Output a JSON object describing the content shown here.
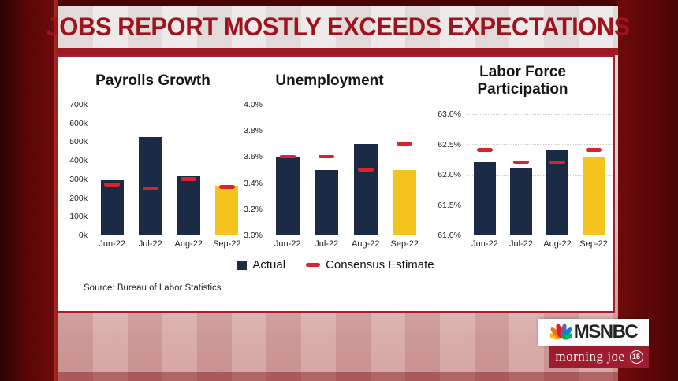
{
  "banner": {
    "title": "JOBS REPORT MOSTLY EXCEEDS EXPECTATIONS"
  },
  "colors": {
    "actual": "#1b2a45",
    "highlight": "#f5c31d",
    "consensus": "#d6252c",
    "banner_text": "#9e141e",
    "frame": "#6b0a0a"
  },
  "chart_data": [
    {
      "id": "payrolls",
      "type": "bar",
      "title": "Payrolls Growth",
      "categories": [
        "Jun-22",
        "Jul-22",
        "Aug-22",
        "Sep-22"
      ],
      "series": [
        {
          "name": "Actual",
          "values": [
            293,
            528,
            315,
            263
          ]
        },
        {
          "name": "Consensus Estimate",
          "values": [
            268,
            250,
            298,
            255
          ]
        }
      ],
      "unit": "thousands of jobs",
      "ylim": [
        0,
        700
      ],
      "yticks": [
        700,
        600,
        500,
        400,
        300,
        200,
        100,
        0
      ],
      "ytick_labels": [
        "700k",
        "600k",
        "500k",
        "400k",
        "300k",
        "200k",
        "100k",
        "0k"
      ],
      "grid": true,
      "highlight_last": true
    },
    {
      "id": "unemployment",
      "type": "bar",
      "title": "Unemployment",
      "categories": [
        "Jun-22",
        "Jul-22",
        "Aug-22",
        "Sep-22"
      ],
      "series": [
        {
          "name": "Actual",
          "values": [
            3.6,
            3.5,
            3.7,
            3.5
          ]
        },
        {
          "name": "Consensus Estimate",
          "values": [
            3.6,
            3.6,
            3.5,
            3.7
          ]
        }
      ],
      "unit": "percent",
      "ylim": [
        3.0,
        4.0
      ],
      "yticks": [
        4.0,
        3.8,
        3.6,
        3.4,
        3.2,
        3.0
      ],
      "ytick_labels": [
        "4.0%",
        "3.8%",
        "3.6%",
        "3.4%",
        "3.2%",
        "3.0%"
      ],
      "grid": true,
      "highlight_last": true
    },
    {
      "id": "lfp",
      "type": "bar",
      "title": "Labor Force Participation",
      "categories": [
        "Jun-22",
        "Jul-22",
        "Aug-22",
        "Sep-22"
      ],
      "series": [
        {
          "name": "Actual",
          "values": [
            62.2,
            62.1,
            62.4,
            62.3
          ]
        },
        {
          "name": "Consensus Estimate",
          "values": [
            62.4,
            62.2,
            62.2,
            62.4
          ]
        }
      ],
      "unit": "percent",
      "ylim": [
        61.0,
        63.0
      ],
      "yticks": [
        63.0,
        62.5,
        62.0,
        61.5,
        61.0
      ],
      "ytick_labels": [
        "63.0%",
        "62.5%",
        "62.0%",
        "61.5%",
        "61.0%"
      ],
      "grid": true,
      "highlight_last": true
    }
  ],
  "legend": {
    "position": "bottom-center shared",
    "actual_label": "Actual",
    "consensus_label": "Consensus Estimate"
  },
  "source": {
    "text": "Source: Bureau of Labor Statistics"
  },
  "logo": {
    "network": "MSNBC",
    "show": "morning joe",
    "badge": "15"
  }
}
